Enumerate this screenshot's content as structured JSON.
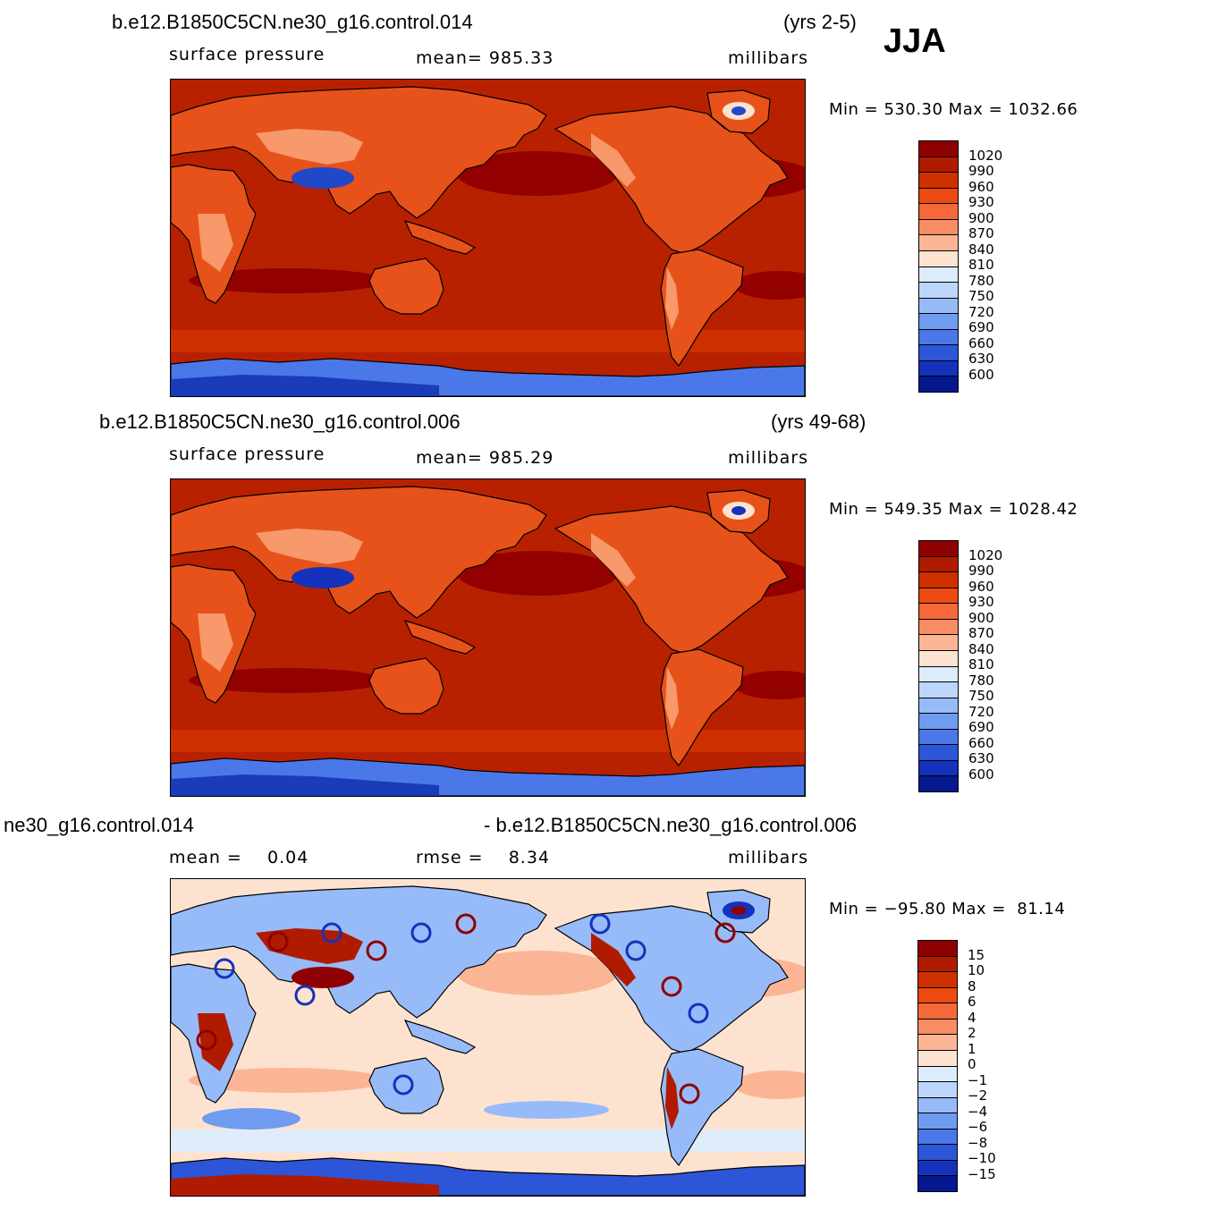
{
  "season": "JJA",
  "panels": [
    {
      "id": "top",
      "case_title": "b.e12.B1850C5CN.ne30_g16.control.014",
      "years": "(yrs 2-5)",
      "left_label": "surface pressure",
      "center_label": "mean=  985.33",
      "units": "millibars",
      "minmax": "Min = 530.30 Max = 1032.66",
      "field": "surface pressure",
      "colorbar": {
        "labels": [
          "1020",
          "990",
          "960",
          "930",
          "900",
          "870",
          "840",
          "810",
          "780",
          "750",
          "720",
          "690",
          "660",
          "630",
          "600"
        ],
        "colors": [
          "#8f0000",
          "#b01b00",
          "#cf3000",
          "#ec4a10",
          "#f5683a",
          "#f88d63",
          "#fbb595",
          "#fde3cf",
          "#dcecfd",
          "#bcd5fb",
          "#97bbf8",
          "#6f9bf1",
          "#4a78e8",
          "#2c55d8",
          "#1432bb",
          "#05188f"
        ]
      },
      "map_colors": {
        "ocean": "#b82100",
        "ocean_high": "#920000",
        "ocean_mid": "#cf3100",
        "land": "#e6521a",
        "land_light": "#f7996a",
        "highland": "#fde3cf",
        "plateau": "#2148c9",
        "antarctic": "#4a78e8",
        "antarctic_deep": "#1a3cb8"
      }
    },
    {
      "id": "middle",
      "case_title": "b.e12.B1850C5CN.ne30_g16.control.006",
      "years": "(yrs 49-68)",
      "left_label": "surface pressure",
      "center_label": "mean=  985.29",
      "units": "millibars",
      "minmax": "Min = 549.35 Max = 1028.42",
      "field": "surface pressure",
      "colorbar": {
        "labels": [
          "1020",
          "990",
          "960",
          "930",
          "900",
          "870",
          "840",
          "810",
          "780",
          "750",
          "720",
          "690",
          "660",
          "630",
          "600"
        ],
        "colors": [
          "#8f0000",
          "#b01b00",
          "#cf3000",
          "#ec4a10",
          "#f5683a",
          "#f88d63",
          "#fbb595",
          "#fde3cf",
          "#dcecfd",
          "#bcd5fb",
          "#97bbf8",
          "#6f9bf1",
          "#4a78e8",
          "#2c55d8",
          "#1432bb",
          "#05188f"
        ]
      },
      "map_colors": {
        "ocean": "#b82100",
        "ocean_high": "#920000",
        "ocean_mid": "#cf3100",
        "land": "#e6521a",
        "land_light": "#f7996a",
        "highland": "#fde3cf",
        "plateau": "#1432bb",
        "antarctic": "#4a78e8",
        "antarctic_deep": "#1a3cb8"
      }
    },
    {
      "id": "bottom",
      "case_title": "ne30_g16.control.014",
      "years": "- b.e12.B1850C5CN.ne30_g16.control.006",
      "left_label": "mean =    0.04",
      "center_label": "rmse =    8.34",
      "units": "millibars",
      "minmax": "Min = −95.80 Max =  81.14",
      "field": "difference",
      "colorbar": {
        "labels": [
          "15",
          "10",
          "8",
          "6",
          "4",
          "2",
          "1",
          "0",
          "−1",
          "−2",
          "−4",
          "−6",
          "−8",
          "−10",
          "−15"
        ],
        "colors": [
          "#8f0000",
          "#b01b00",
          "#cf3000",
          "#ec4a10",
          "#f5683a",
          "#f88d63",
          "#fbb595",
          "#fde3cf",
          "#dcecfd",
          "#bcd5fb",
          "#97bbf8",
          "#6f9bf1",
          "#4a78e8",
          "#2c55d8",
          "#1432bb",
          "#05188f"
        ]
      },
      "map_colors": {
        "ocean": "#fde3cf",
        "ocean_high": "#fbb595",
        "ocean_mid": "#dcecfd",
        "land": "#97bbf8",
        "land_light": "#b01b00",
        "highland": "#1432bb",
        "plateau": "#8f0000",
        "antarctic": "#2c55d8",
        "antarctic_deep": "#b01b00"
      }
    }
  ]
}
